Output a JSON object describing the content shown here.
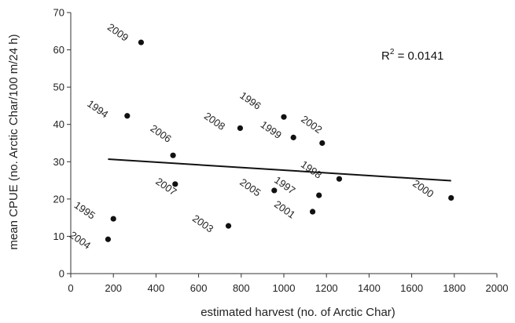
{
  "chart_data": {
    "type": "scatter",
    "title": "",
    "xlabel": "estimated harvest (no. of Arctic Char)",
    "ylabel": "mean CPUE (no. Arctic Char/100 m/24 h)",
    "xlim": [
      0,
      2000
    ],
    "ylim": [
      0,
      70
    ],
    "xticks": [
      0,
      200,
      400,
      600,
      800,
      1000,
      1200,
      1400,
      1600,
      1800,
      2000
    ],
    "yticks": [
      0,
      10,
      20,
      30,
      40,
      50,
      60,
      70
    ],
    "grid": false,
    "points": [
      {
        "label": "2009",
        "x": 330,
        "y": 62
      },
      {
        "label": "1994",
        "x": 265,
        "y": 42.3
      },
      {
        "label": "2006",
        "x": 480,
        "y": 31.7
      },
      {
        "label": "2007",
        "x": 490,
        "y": 24
      },
      {
        "label": "2008",
        "x": 795,
        "y": 39
      },
      {
        "label": "1996",
        "x": 1000,
        "y": 42
      },
      {
        "label": "1999",
        "x": 1045,
        "y": 36.5
      },
      {
        "label": "2002",
        "x": 1180,
        "y": 35
      },
      {
        "label": "1995",
        "x": 200,
        "y": 14.7
      },
      {
        "label": "2004",
        "x": 175,
        "y": 9.2
      },
      {
        "label": "2003",
        "x": 740,
        "y": 12.8
      },
      {
        "label": "2005",
        "x": 955,
        "y": 22.3
      },
      {
        "label": "1997",
        "x": 1165,
        "y": 21
      },
      {
        "label": "2001",
        "x": 1135,
        "y": 16.6
      },
      {
        "label": "1998",
        "x": 1260,
        "y": 25.4
      },
      {
        "label": "2000",
        "x": 1785,
        "y": 20.3
      }
    ],
    "trendline": {
      "x": [
        175,
        1785
      ],
      "y": [
        30.7,
        24.9
      ]
    },
    "annotation": {
      "base": "R",
      "sup": "2",
      "text": " = 0.0141"
    }
  }
}
